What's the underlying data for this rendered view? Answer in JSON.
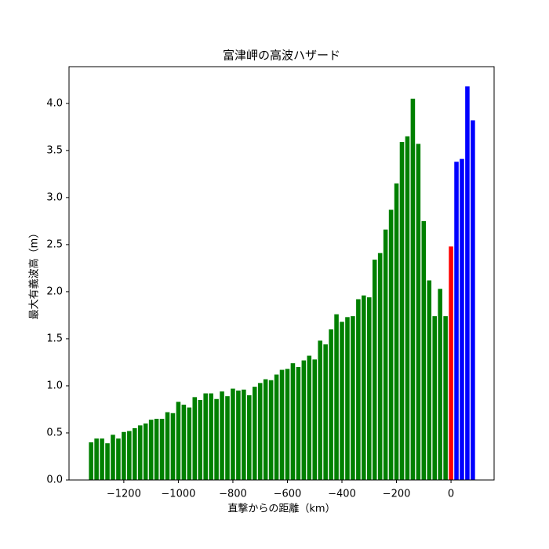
{
  "chart_data": {
    "type": "bar",
    "title": "富津岬の高波ハザード",
    "xlabel": "直撃からの距離（km）",
    "ylabel": "最大有義波高（m）",
    "bar_width": 16,
    "series": [
      {
        "color": "#008000",
        "x": [
          -1320,
          -1300,
          -1280,
          -1260,
          -1240,
          -1220,
          -1200,
          -1180,
          -1160,
          -1140,
          -1120,
          -1100,
          -1080,
          -1060,
          -1040,
          -1020,
          -1000,
          -980,
          -960,
          -940,
          -920,
          -900,
          -880,
          -860,
          -840,
          -820,
          -800,
          -780,
          -760,
          -740,
          -720,
          -700,
          -680,
          -660,
          -640,
          -620,
          -600,
          -580,
          -560,
          -540,
          -520,
          -500,
          -480,
          -460,
          -440,
          -420,
          -400,
          -380,
          -360,
          -340,
          -320,
          -300,
          -280,
          -260,
          -240,
          -220,
          -200,
          -180,
          -160,
          -140,
          -120,
          -100,
          -80,
          -60,
          -40,
          -20
        ],
        "values": [
          0.4,
          0.44,
          0.44,
          0.39,
          0.48,
          0.44,
          0.51,
          0.52,
          0.55,
          0.58,
          0.6,
          0.64,
          0.65,
          0.65,
          0.72,
          0.71,
          0.83,
          0.8,
          0.77,
          0.88,
          0.85,
          0.92,
          0.92,
          0.86,
          0.94,
          0.89,
          0.97,
          0.95,
          0.96,
          0.9,
          0.99,
          1.03,
          1.07,
          1.06,
          1.12,
          1.17,
          1.18,
          1.24,
          1.2,
          1.27,
          1.32,
          1.28,
          1.48,
          1.44,
          1.6,
          1.76,
          1.68,
          1.73,
          1.74,
          1.92,
          1.96,
          1.94,
          2.34,
          2.41,
          2.66,
          2.87,
          3.15,
          3.59,
          3.65,
          4.05,
          3.57,
          2.75,
          2.12,
          1.74,
          2.03,
          1.74
        ]
      },
      {
        "color": "#ff0000",
        "x": [
          0
        ],
        "values": [
          2.48
        ]
      },
      {
        "color": "#0000ff",
        "x": [
          20,
          40,
          60,
          80
        ],
        "values": [
          3.38,
          3.41,
          4.18,
          3.82
        ]
      }
    ],
    "xlim": [
      -1401,
      158
    ],
    "ylim": [
      0,
      4.39
    ],
    "xticks": [
      {
        "value": -1200,
        "label": "−1200"
      },
      {
        "value": -1000,
        "label": "−1000"
      },
      {
        "value": -800,
        "label": "−800"
      },
      {
        "value": -600,
        "label": "−600"
      },
      {
        "value": -400,
        "label": "−400"
      },
      {
        "value": -200,
        "label": "−200"
      },
      0
    ],
    "yticks": [
      {
        "value": 0,
        "label": "0.0"
      },
      0.5,
      {
        "value": 1,
        "label": "1.0"
      },
      1.5,
      {
        "value": 2,
        "label": "2.0"
      },
      2.5,
      {
        "value": 3,
        "label": "3.0"
      },
      3.5,
      {
        "value": 4,
        "label": "4.0"
      }
    ]
  }
}
